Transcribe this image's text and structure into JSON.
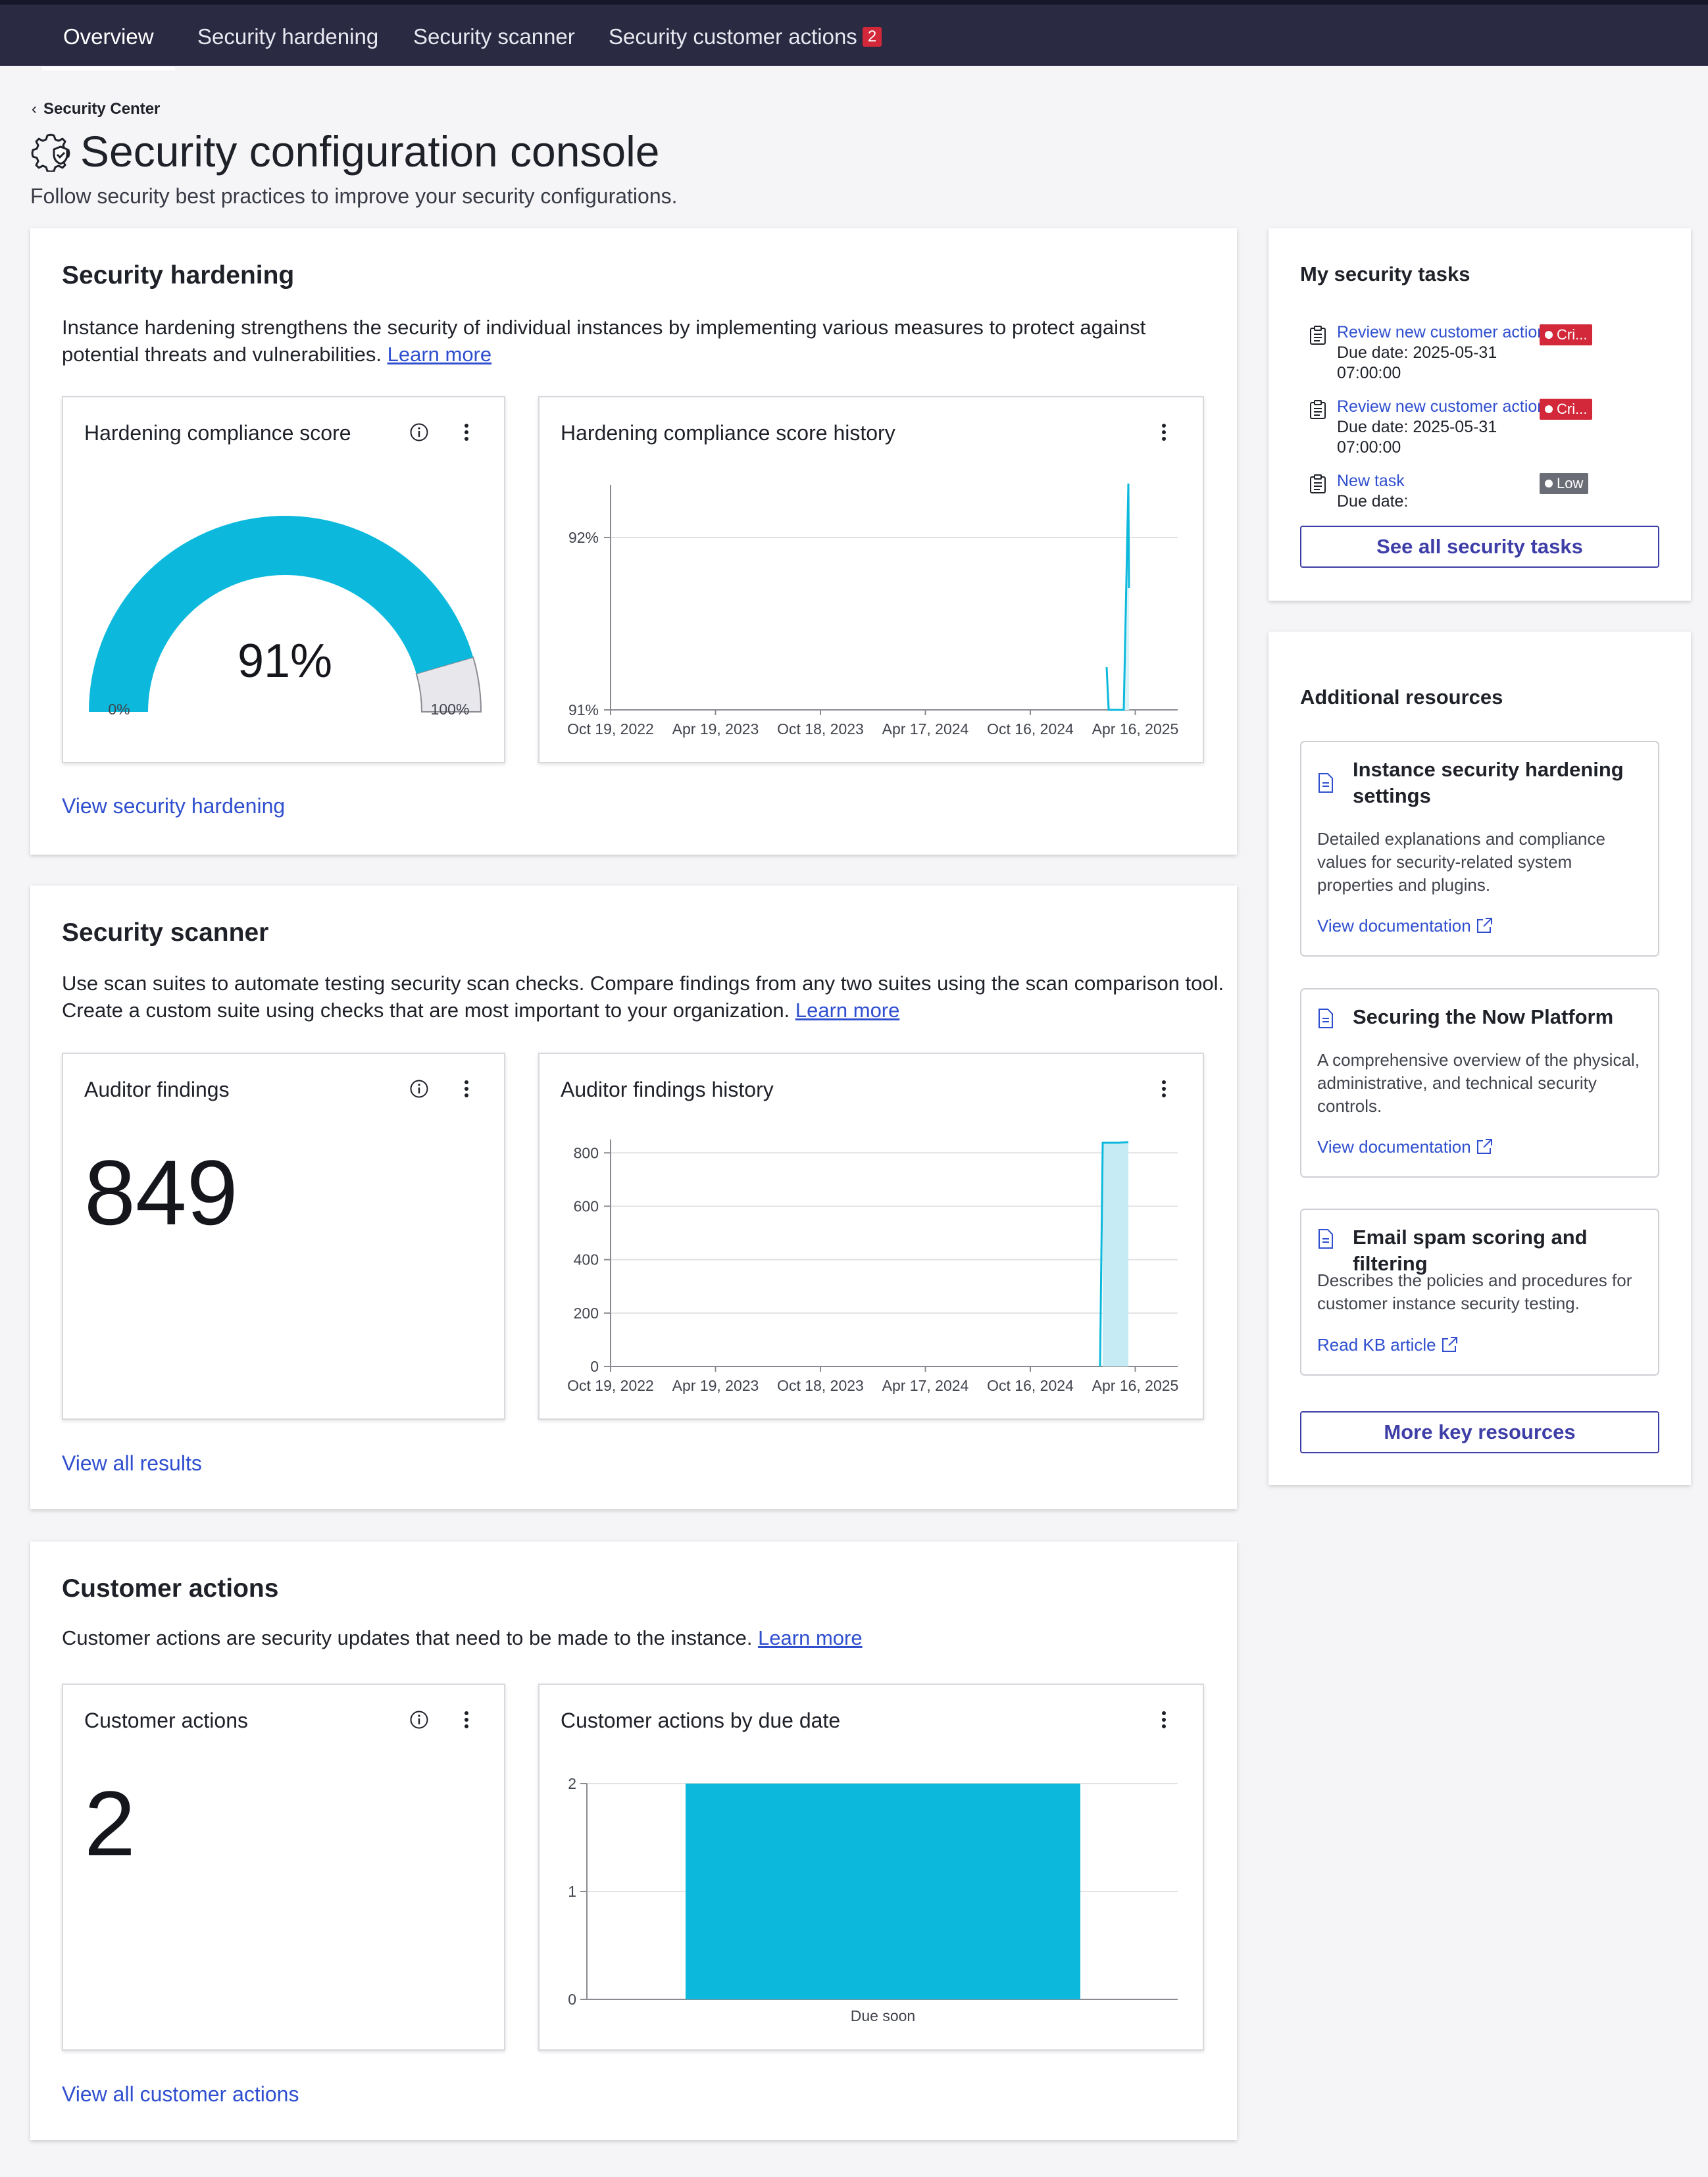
{
  "nav": {
    "tabs": [
      {
        "label": "Overview",
        "active": true
      },
      {
        "label": "Security hardening"
      },
      {
        "label": "Security scanner"
      },
      {
        "label": "Security customer actions",
        "badge": "2"
      }
    ]
  },
  "header": {
    "breadcrumb": "Security Center",
    "title": "Security configuration console",
    "subtitle": "Follow security best practices to improve your security configurations."
  },
  "hardening": {
    "title": "Security hardening",
    "description": "Instance hardening strengthens the security of individual instances by implementing various measures to protect against potential threats and vulnerabilities.",
    "learn_more": "Learn more",
    "score_card": {
      "title": "Hardening compliance score",
      "value_label": "91%",
      "value": 91,
      "min_label": "0%",
      "max_label": "100%"
    },
    "history_card": {
      "title": "Hardening compliance score history"
    },
    "view_link": "View security hardening"
  },
  "scanner": {
    "title": "Security scanner",
    "description": "Use scan suites to automate testing security scan checks. Compare findings from any two suites using the scan comparison tool. Create a custom suite using checks that are most important to your organization.",
    "learn_more": "Learn more",
    "findings_card": {
      "title": "Auditor findings",
      "value": "849"
    },
    "history_card": {
      "title": "Auditor findings history"
    },
    "view_link": "View all results"
  },
  "customer_actions": {
    "title": "Customer actions",
    "description": "Customer actions are security updates that need to be made to the instance.",
    "learn_more": "Learn more",
    "count_card": {
      "title": "Customer actions",
      "value": "2"
    },
    "due_card": {
      "title": "Customer actions by due date"
    },
    "view_link": "View all customer actions"
  },
  "tasks": {
    "title": "My security tasks",
    "items": [
      {
        "name": "Review new customer action -",
        "due": "Due date: 2025-05-31 07:00:00",
        "priority": "Cri...",
        "color": "#d2283a"
      },
      {
        "name": "Review new customer action -",
        "due": "Due date: 2025-05-31 07:00:00",
        "priority": "Cri...",
        "color": "#d2283a"
      },
      {
        "name": "New task",
        "due": "Due date:",
        "priority": "Low",
        "color": "#6b6d76"
      }
    ],
    "see_all": "See all security tasks"
  },
  "resources": {
    "title": "Additional resources",
    "items": [
      {
        "title": "Instance security hardening settings",
        "description": "Detailed explanations and compliance values for security-related system properties and plugins.",
        "link": "View documentation"
      },
      {
        "title": "Securing the Now Platform",
        "description": "A comprehensive overview of the physical, administrative, and technical security controls.",
        "link": "View documentation"
      },
      {
        "title": "Email spam scoring and filtering",
        "description": "Describes the policies and procedures for customer instance security testing.",
        "link": "Read KB article"
      }
    ],
    "more": "More key resources"
  },
  "colors": {
    "accent": "#0cb9dc",
    "link": "#2f4fcf",
    "nav_bg": "#2b2a43",
    "critical": "#d2283a"
  },
  "chart_data": [
    {
      "type": "gauge",
      "title": "Hardening compliance score",
      "value": 91,
      "range": [
        0,
        100
      ]
    },
    {
      "type": "line",
      "title": "Hardening compliance score history",
      "x_ticks": [
        "Oct 19, 2022",
        "Apr 19, 2023",
        "Oct 18, 2023",
        "Apr 17, 2024",
        "Oct 16, 2024",
        "Apr 16, 2025"
      ],
      "y_ticks": [
        "91%",
        "92%"
      ],
      "ylim": [
        91,
        92.3
      ],
      "points": [
        {
          "x": "Apr 2025",
          "y": 91.25
        },
        {
          "x": "Apr 2025",
          "y": 91.0
        },
        {
          "x": "May 2025",
          "y": 91.0
        },
        {
          "x": "May 2025",
          "y": 92.3
        },
        {
          "x": "May 2025",
          "y": 91.7
        }
      ]
    },
    {
      "type": "area",
      "title": "Auditor findings history",
      "x_ticks": [
        "Oct 19, 2022",
        "Apr 19, 2023",
        "Oct 18, 2023",
        "Apr 17, 2024",
        "Oct 16, 2024",
        "Apr 16, 2025"
      ],
      "y_ticks": [
        "0",
        "200",
        "400",
        "600",
        "800"
      ],
      "ylim": [
        0,
        850
      ],
      "points": [
        {
          "x": "Apr 2025",
          "y": 0
        },
        {
          "x": "May 2025",
          "y": 845
        },
        {
          "x": "May 2025",
          "y": 849
        }
      ]
    },
    {
      "type": "bar",
      "title": "Customer actions by due date",
      "categories": [
        "Due soon"
      ],
      "values": [
        2
      ],
      "y_ticks": [
        "0",
        "1",
        "2"
      ],
      "ylim": [
        0,
        2
      ]
    }
  ]
}
